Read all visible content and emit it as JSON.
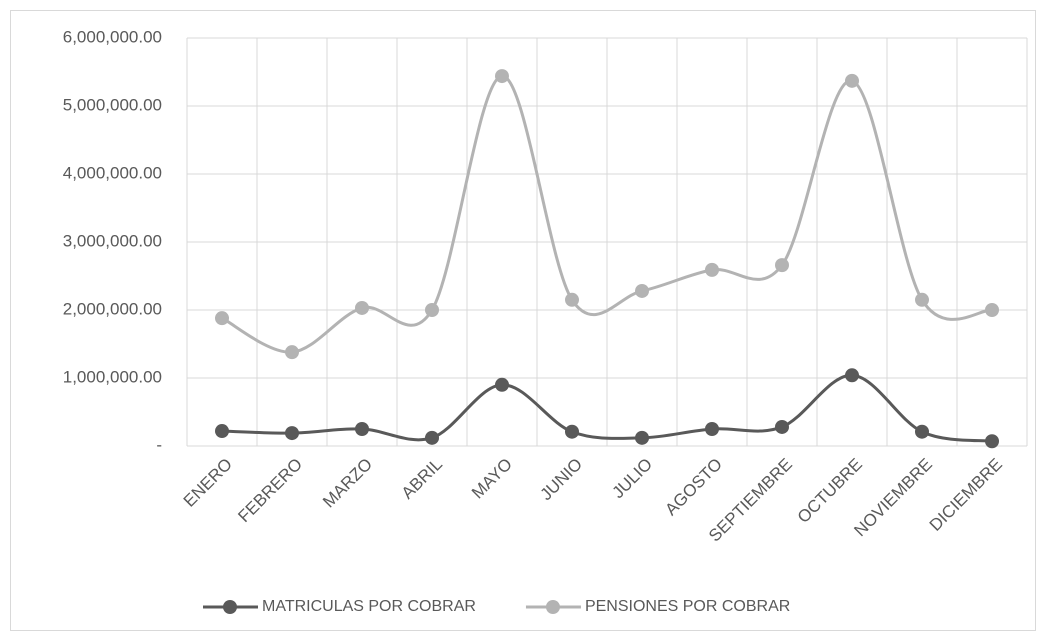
{
  "chart_data": {
    "type": "line",
    "categories": [
      "ENERO",
      "FEBRERO",
      "MARZO",
      "ABRIL",
      "MAYO",
      "JUNIO",
      "JULIO",
      "AGOSTO",
      "SEPTIEMBRE",
      "OCTUBRE",
      "NOVIEMBRE",
      "DICIEMBRE"
    ],
    "series": [
      {
        "name": "MATRICULAS POR COBRAR",
        "color": "#595959",
        "values": [
          220000,
          190000,
          250000,
          120000,
          900000,
          210000,
          120000,
          250000,
          280000,
          1040000,
          210000,
          70000
        ]
      },
      {
        "name": "PENSIONES POR COBRAR",
        "color": "#b3b3b3",
        "values": [
          1880000,
          1380000,
          2030000,
          2000000,
          5440000,
          2150000,
          2280000,
          2590000,
          2660000,
          5370000,
          2150000,
          2000000
        ]
      }
    ],
    "ylim": [
      0,
      6000000
    ],
    "yticks": [
      {
        "value": 0,
        "label": "-"
      },
      {
        "value": 1000000,
        "label": "1,000,000.00"
      },
      {
        "value": 2000000,
        "label": "2,000,000.00"
      },
      {
        "value": 3000000,
        "label": "3,000,000.00"
      },
      {
        "value": 4000000,
        "label": "4,000,000.00"
      },
      {
        "value": 5000000,
        "label": "5,000,000.00"
      },
      {
        "value": 6000000,
        "label": "6,000,000.00"
      }
    ],
    "grid": true,
    "smooth": true,
    "legend": "bottom"
  }
}
